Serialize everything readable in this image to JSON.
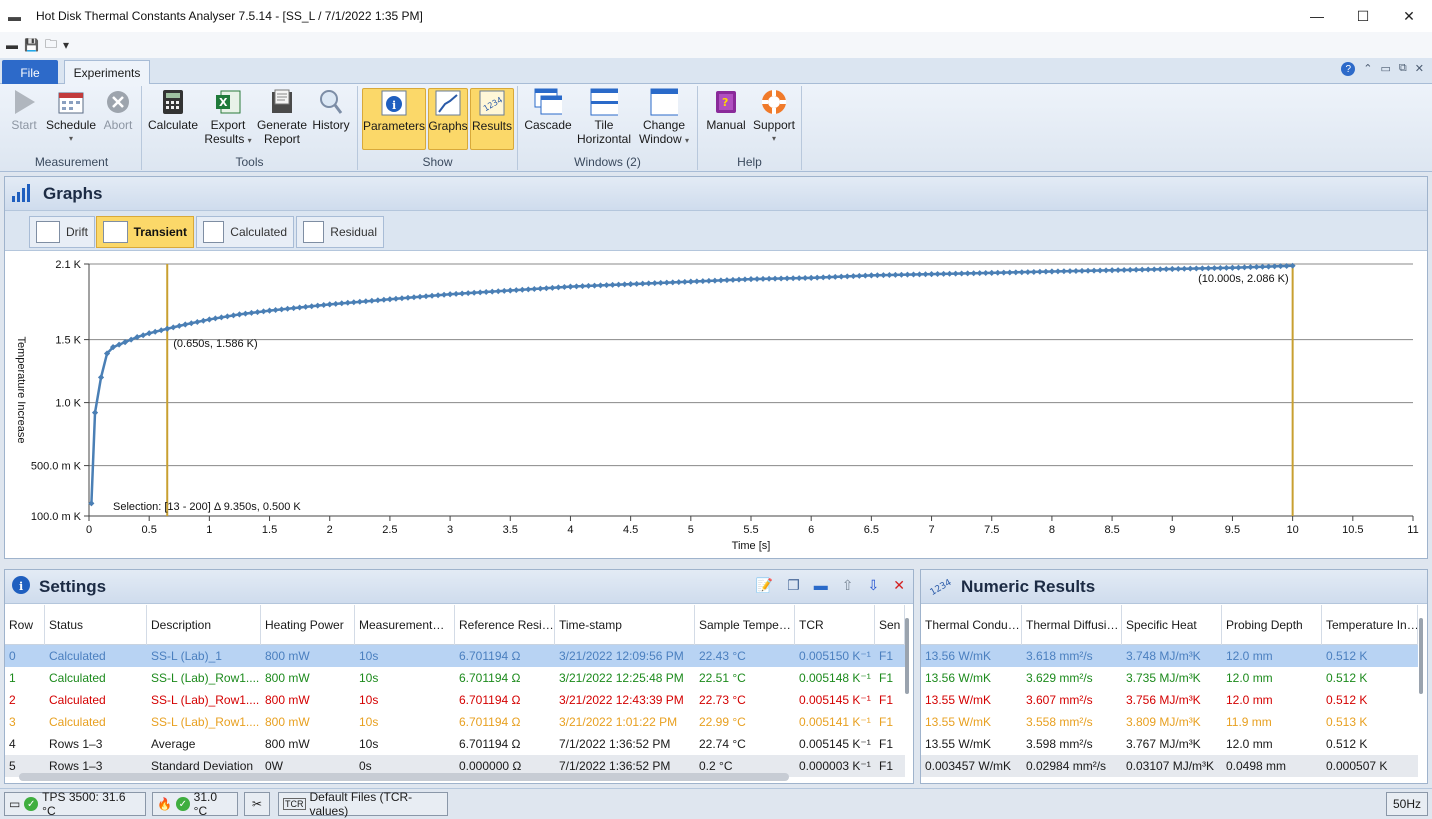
{
  "window": {
    "title": "Hot Disk Thermal Constants Analyser 7.5.14 - [SS_L  /  7/1/2022 1:35 PM]",
    "minimize": "—",
    "maximize": "☐",
    "close": "✕"
  },
  "ribbon_tabs": {
    "file": "File",
    "experiments": "Experiments"
  },
  "ribbon": {
    "groups": {
      "measurement": "Measurement",
      "tools": "Tools",
      "show": "Show",
      "windows": "Windows (2)",
      "help": "Help"
    },
    "buttons": {
      "start": "Start",
      "schedule": "Schedule",
      "abort": "Abort",
      "calculate": "Calculate",
      "export_1": "Export",
      "export_2": "Results",
      "generate_1": "Generate",
      "generate_2": "Report",
      "history": "History",
      "parameters": "Parameters",
      "graphs": "Graphs",
      "results": "Results",
      "cascade": "Cascade",
      "tile_1": "Tile",
      "tile_2": "Horizontal",
      "change_1": "Change",
      "change_2": "Window",
      "manual": "Manual",
      "support": "Support"
    }
  },
  "graphs_panel": {
    "title": "Graphs",
    "tabs": [
      "Drift",
      "Transient",
      "Calculated",
      "Residual"
    ],
    "active_tab": "Transient"
  },
  "chart_data": {
    "type": "line",
    "xlabel": "Time [s]",
    "ylabel": "Temperature Increase",
    "xlim": [
      0,
      11
    ],
    "ylim": [
      0.1,
      2.1
    ],
    "x_ticks": [
      "0",
      "0.5",
      "1",
      "1.5",
      "2",
      "2.5",
      "3",
      "3.5",
      "4",
      "4.5",
      "5",
      "5.5",
      "6",
      "6.5",
      "7",
      "7.5",
      "8",
      "8.5",
      "9",
      "9.5",
      "10",
      "10.5",
      "11"
    ],
    "y_ticks": [
      {
        "value": 0.1,
        "label": "100.0 m K"
      },
      {
        "value": 0.5,
        "label": "500.0 m K"
      },
      {
        "value": 1.0,
        "label": "1.0 K"
      },
      {
        "value": 1.5,
        "label": "1.5 K"
      },
      {
        "value": 2.1,
        "label": "2.1 K"
      }
    ],
    "series": [
      {
        "color": "#4a7fb5",
        "x": [
          0.02,
          0.05,
          0.1,
          0.15,
          0.2,
          0.3,
          0.4,
          0.5,
          0.65,
          0.8,
          1.0,
          1.25,
          1.5,
          2.0,
          2.5,
          3.0,
          3.5,
          4.0,
          4.5,
          5.0,
          5.5,
          6.0,
          6.5,
          7.0,
          7.5,
          8.0,
          8.5,
          9.0,
          9.5,
          10.0
        ],
        "y": [
          0.2,
          0.92,
          1.2,
          1.39,
          1.44,
          1.48,
          1.52,
          1.55,
          1.586,
          1.62,
          1.66,
          1.7,
          1.73,
          1.78,
          1.82,
          1.86,
          1.89,
          1.92,
          1.94,
          1.96,
          1.98,
          1.99,
          2.01,
          2.02,
          2.03,
          2.04,
          2.05,
          2.06,
          2.07,
          2.086
        ]
      }
    ],
    "cursors": [
      0.65,
      10.0
    ],
    "annotations": {
      "left_point": "(0.650s, 1.586 K)",
      "right_point": "(10.000s, 2.086 K)",
      "selection": "Selection: [13 - 200] Δ 9.350s, 0.500 K"
    }
  },
  "settings_panel": {
    "title": "Settings",
    "columns": [
      "Row",
      "Status",
      "Description",
      "Heating Power",
      "Measurement…",
      "Reference Resi…",
      "Time-stamp",
      "Sample Tempe…",
      "TCR",
      "Sen"
    ],
    "rows": [
      {
        "color": "blue",
        "cells": [
          "0",
          "Calculated",
          "SS-L (Lab)_1",
          "800 mW",
          "10s",
          "6.701194 Ω",
          "3/21/2022 12:09:56 PM",
          "22.43 °C",
          "0.005150 K⁻¹",
          "F1"
        ]
      },
      {
        "color": "green",
        "cells": [
          "1",
          "Calculated",
          "SS-L (Lab)_Row1....",
          "800 mW",
          "10s",
          "6.701194 Ω",
          "3/21/2022 12:25:48 PM",
          "22.51 °C",
          "0.005148 K⁻¹",
          "F1"
        ]
      },
      {
        "color": "red",
        "cells": [
          "2",
          "Calculated",
          "SS-L (Lab)_Row1....",
          "800 mW",
          "10s",
          "6.701194 Ω",
          "3/21/2022 12:43:39 PM",
          "22.73 °C",
          "0.005145 K⁻¹",
          "F1"
        ]
      },
      {
        "color": "orange",
        "cells": [
          "3",
          "Calculated",
          "SS-L (Lab)_Row1....",
          "800 mW",
          "10s",
          "6.701194 Ω",
          "3/21/2022 1:01:22 PM",
          "22.99 °C",
          "0.005141 K⁻¹",
          "F1"
        ]
      },
      {
        "color": "black",
        "cells": [
          "4",
          "Rows 1–3",
          "Average",
          "800 mW",
          "10s",
          "6.701194 Ω",
          "7/1/2022 1:36:52 PM",
          "22.74 °C",
          "0.005145 K⁻¹",
          "F1"
        ]
      },
      {
        "color": "black",
        "cells": [
          "5",
          "Rows 1–3",
          "Standard Deviation",
          "0W",
          "0s",
          "0.000000 Ω",
          "7/1/2022 1:36:52 PM",
          "0.2 °C",
          "0.000003 K⁻¹",
          "F1"
        ]
      }
    ]
  },
  "numeric_panel": {
    "title": "Numeric Results",
    "columns": [
      "Thermal Condu…",
      "Thermal Diffusi…",
      "Specific Heat",
      "Probing Depth",
      "Temperature In…"
    ],
    "rows": [
      {
        "color": "blue",
        "cells": [
          "13.56 W/mK",
          "3.618 mm²/s",
          "3.748 MJ/m³K",
          "12.0 mm",
          "0.512 K"
        ]
      },
      {
        "color": "green",
        "cells": [
          "13.56 W/mK",
          "3.629 mm²/s",
          "3.735 MJ/m³K",
          "12.0 mm",
          "0.512 K"
        ]
      },
      {
        "color": "red",
        "cells": [
          "13.55 W/mK",
          "3.607 mm²/s",
          "3.756 MJ/m³K",
          "12.0 mm",
          "0.512 K"
        ]
      },
      {
        "color": "orange",
        "cells": [
          "13.55 W/mK",
          "3.558 mm²/s",
          "3.809 MJ/m³K",
          "11.9 mm",
          "0.513 K"
        ]
      },
      {
        "color": "black",
        "cells": [
          "13.55 W/mK",
          "3.598 mm²/s",
          "3.767 MJ/m³K",
          "12.0 mm",
          "0.512 K"
        ]
      },
      {
        "color": "black",
        "cells": [
          "0.003457 W/mK",
          "0.02984 mm²/s",
          "0.03107 MJ/m³K",
          "0.0498 mm",
          "0.000507 K"
        ]
      }
    ]
  },
  "statusbar": {
    "instrument": "TPS 3500: 31.6 °C",
    "temp": "31.0 °C",
    "files": "Default Files (TCR-values)",
    "freq": "50Hz"
  }
}
